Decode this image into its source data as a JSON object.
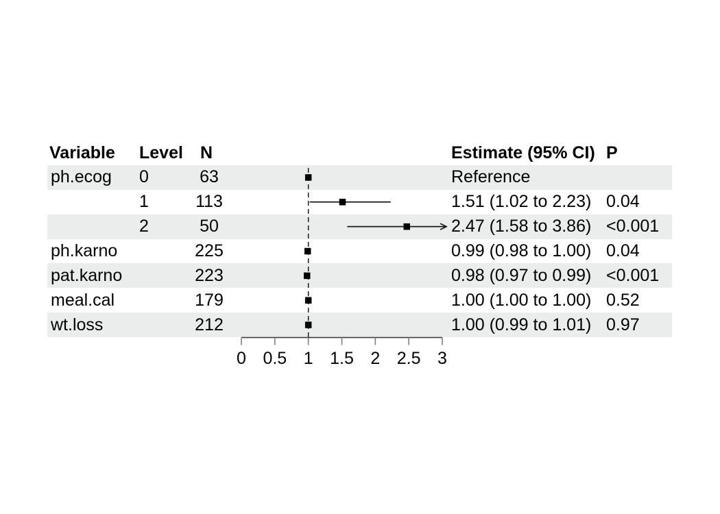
{
  "chart_data": {
    "type": "forest",
    "title": "",
    "xlabel": "",
    "ylabel": "",
    "columns": [
      "Variable",
      "Level",
      "N",
      "Estimate (95% CI)",
      "P"
    ],
    "rows": [
      {
        "variable": "ph.ecog",
        "level": "0",
        "n": "63",
        "estimate": 1.0,
        "ci_low": null,
        "ci_high": null,
        "estimate_label": "Reference",
        "p": "",
        "shaded": true,
        "clipped_right": false
      },
      {
        "variable": "",
        "level": "1",
        "n": "113",
        "estimate": 1.51,
        "ci_low": 1.02,
        "ci_high": 2.23,
        "estimate_label": "1.51 (1.02 to 2.23)",
        "p": "0.04",
        "shaded": false,
        "clipped_right": false
      },
      {
        "variable": "",
        "level": "2",
        "n": "50",
        "estimate": 2.47,
        "ci_low": 1.58,
        "ci_high": 3.86,
        "estimate_label": "2.47 (1.58 to 3.86)",
        "p": "<0.001",
        "shaded": true,
        "clipped_right": true
      },
      {
        "variable": "ph.karno",
        "level": "",
        "n": "225",
        "estimate": 0.99,
        "ci_low": 0.98,
        "ci_high": 1.0,
        "estimate_label": "0.99 (0.98 to 1.00)",
        "p": "0.04",
        "shaded": false,
        "clipped_right": false
      },
      {
        "variable": "pat.karno",
        "level": "",
        "n": "223",
        "estimate": 0.98,
        "ci_low": 0.97,
        "ci_high": 0.99,
        "estimate_label": "0.98 (0.97 to 0.99)",
        "p": "<0.001",
        "shaded": true,
        "clipped_right": false
      },
      {
        "variable": "meal.cal",
        "level": "",
        "n": "179",
        "estimate": 1.0,
        "ci_low": 1.0,
        "ci_high": 1.0,
        "estimate_label": "1.00 (1.00 to 1.00)",
        "p": "0.52",
        "shaded": false,
        "clipped_right": false
      },
      {
        "variable": "wt.loss",
        "level": "",
        "n": "212",
        "estimate": 1.0,
        "ci_low": 0.99,
        "ci_high": 1.01,
        "estimate_label": "1.00 (0.99 to 1.01)",
        "p": "0.97",
        "shaded": true,
        "clipped_right": false
      }
    ],
    "x_axis": {
      "range": [
        0,
        3
      ],
      "ticks": [
        0,
        0.5,
        1,
        1.5,
        2,
        2.5,
        3
      ],
      "tick_labels": [
        "0",
        "0.5",
        "1",
        "1.5",
        "2",
        "2.5",
        "3"
      ],
      "reference_line": 1,
      "grid": false
    },
    "colors": {
      "band_shaded": "#eaedec",
      "band_plain": "#ffffff",
      "marker": "#000000",
      "ci_line": "#1a1a1a",
      "reference_line": "#1a1a1a",
      "axis_line": "#333333",
      "tick": "#808080",
      "text": "#000000"
    }
  }
}
